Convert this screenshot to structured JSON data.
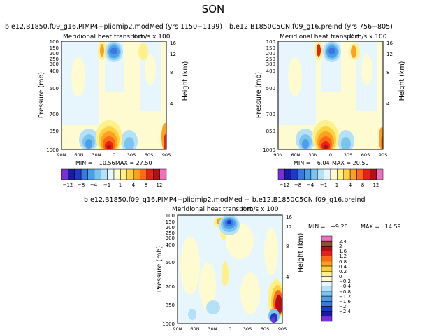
{
  "page": {
    "title": "SON"
  },
  "palette": {
    "main": [
      "#7b2fd6",
      "#1a1aa0",
      "#2038c8",
      "#3a78e0",
      "#4aa0e8",
      "#7cc4f0",
      "#b4e0f8",
      "#e6f6fc",
      "#fffbd0",
      "#fff08a",
      "#ffd040",
      "#ffa020",
      "#ff6a14",
      "#e8201a",
      "#b01018",
      "#f070c0"
    ],
    "diff": [
      "#7b2fd6",
      "#1a1aa0",
      "#2038c8",
      "#3a78e0",
      "#4aa0e8",
      "#7cc4f0",
      "#b4e0f8",
      "#e6f6fc",
      "#fffbd0",
      "#fff08a",
      "#ffd040",
      "#ffa020",
      "#ff6a14",
      "#e8201a",
      "#b01018",
      "#8c5030",
      "#f070c0"
    ]
  },
  "chart_data": [
    {
      "type": "heatmap",
      "title": "b.e12.B1850.f09_g16.PIMP4−pliomip2.modMed (yrs 1150−1199)",
      "subtitle": "Meridional heat transport",
      "units": "K m/s x 100",
      "ylabel": "Pressure (mb)",
      "ylabel_right": "Height (km)",
      "x_ticks": [
        "90N",
        "60N",
        "30N",
        "0",
        "30S",
        "60S",
        "90S"
      ],
      "y_ticks": [
        "100",
        "150",
        "200",
        "250",
        "300",
        "400",
        "500",
        "700",
        "850",
        "1000"
      ],
      "y_ticks_right": [
        "16",
        "12",
        "8",
        "4"
      ],
      "min_label": "MIN = −10.56",
      "max_label": "MAX = 27.50",
      "min": -10.56,
      "max": 27.5,
      "colorbar_labels": [
        "−12",
        "−8",
        "−4",
        "−1",
        "1",
        "4",
        "8",
        "12"
      ]
    },
    {
      "type": "heatmap",
      "title": "b.e12.B1850C5CN.f09_g16.preind (yrs 756−805)",
      "subtitle": "Meridional heat transport",
      "units": "K m/s x 100",
      "ylabel": "Pressure (mb)",
      "ylabel_right": "Height (km)",
      "x_ticks": [
        "90N",
        "60N",
        "30N",
        "0",
        "30S",
        "60S",
        "90S"
      ],
      "y_ticks": [
        "100",
        "150",
        "200",
        "250",
        "300",
        "400",
        "500",
        "700",
        "850",
        "1000"
      ],
      "y_ticks_right": [
        "16",
        "12",
        "8",
        "4"
      ],
      "min_label": "MIN = −6.04",
      "max_label": "MAX = 20.59",
      "min": -6.04,
      "max": 20.59,
      "colorbar_labels": [
        "−12",
        "−8",
        "−4",
        "−1",
        "1",
        "4",
        "8",
        "12"
      ]
    },
    {
      "type": "heatmap",
      "title": "b.e12.B1850.f09_g16.PIMP4−pliomip2.modMed − b.e12.B1850C5CN.f09_g16.preind",
      "subtitle": "Meridional heat transport",
      "units": "K m/s x 100",
      "ylabel": "Pressure (mb)",
      "ylabel_right": "Height (km)",
      "x_ticks": [
        "90N",
        "60N",
        "30N",
        "0",
        "30S",
        "60S",
        "90S"
      ],
      "y_ticks": [
        "100",
        "150",
        "200",
        "250",
        "300",
        "400",
        "500",
        "700",
        "850",
        "1000"
      ],
      "y_ticks_right": [
        "16",
        "12",
        "8",
        "4"
      ],
      "min_label": "MIN =   −9.26",
      "max_label": "MAX =   14.59",
      "min": -9.26,
      "max": 14.59,
      "colorbar_labels": [
        "2.4",
        "2",
        "1.6",
        "1.2",
        "0.8",
        "0.4",
        "0.2",
        "0",
        "−0.2",
        "−0.4",
        "−0.8",
        "−1.2",
        "−1.6",
        "−2",
        "−2.4"
      ]
    }
  ]
}
